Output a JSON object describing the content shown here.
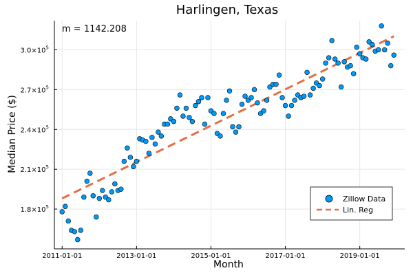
{
  "chart_data": {
    "type": "scatter",
    "title": "Harlingen, Texas",
    "xlabel": "Month",
    "ylabel": "Median Price ($)",
    "annotation": "m = 1142.208",
    "x_tick_labels": [
      "2011-01-01",
      "2013-01-01",
      "2015-01-01",
      "2017-01-01",
      "2019-01-01"
    ],
    "y_ticks": [
      {
        "value": 180000,
        "mantissa": "1.8",
        "exp": "5"
      },
      {
        "value": 210000,
        "mantissa": "2.1",
        "exp": "5"
      },
      {
        "value": 240000,
        "mantissa": "2.4",
        "exp": "5"
      },
      {
        "value": 270000,
        "mantissa": "2.7",
        "exp": "5"
      },
      {
        "value": 300000,
        "mantissa": "3.0",
        "exp": "5"
      }
    ],
    "xlim_months": [
      -2.5,
      110.5
    ],
    "ylim": [
      150000,
      322000
    ],
    "grid": true,
    "legend_position": "bottom-right",
    "series": [
      {
        "name": "Zillow Data",
        "kind": "scatter",
        "color": "#009AF9",
        "points": [
          [
            0,
            178000
          ],
          [
            1,
            182000
          ],
          [
            2,
            171000
          ],
          [
            3,
            164000
          ],
          [
            4,
            163000
          ],
          [
            5,
            157000
          ],
          [
            6,
            164000
          ],
          [
            7,
            189000
          ],
          [
            8,
            201000
          ],
          [
            9,
            207000
          ],
          [
            10,
            190000
          ],
          [
            11,
            174000
          ],
          [
            12,
            188000
          ],
          [
            13,
            194000
          ],
          [
            14,
            189000
          ],
          [
            15,
            187000
          ],
          [
            16,
            193000
          ],
          [
            17,
            199000
          ],
          [
            18,
            194000
          ],
          [
            19,
            195000
          ],
          [
            20,
            216000
          ],
          [
            21,
            226000
          ],
          [
            22,
            219000
          ],
          [
            23,
            212000
          ],
          [
            24,
            216000
          ],
          [
            25,
            233000
          ],
          [
            26,
            232000
          ],
          [
            27,
            231000
          ],
          [
            28,
            222000
          ],
          [
            29,
            234000
          ],
          [
            30,
            229000
          ],
          [
            31,
            238000
          ],
          [
            32,
            235000
          ],
          [
            33,
            244000
          ],
          [
            34,
            244000
          ],
          [
            35,
            248000
          ],
          [
            36,
            246000
          ],
          [
            37,
            256000
          ],
          [
            38,
            266000
          ],
          [
            39,
            250000
          ],
          [
            40,
            256000
          ],
          [
            41,
            249000
          ],
          [
            42,
            246000
          ],
          [
            43,
            258000
          ],
          [
            44,
            261000
          ],
          [
            45,
            264000
          ],
          [
            46,
            244000
          ],
          [
            47,
            264000
          ],
          [
            48,
            254000
          ],
          [
            49,
            252000
          ],
          [
            50,
            237000
          ],
          [
            51,
            235000
          ],
          [
            52,
            252000
          ],
          [
            53,
            262000
          ],
          [
            54,
            269000
          ],
          [
            55,
            242000
          ],
          [
            56,
            238000
          ],
          [
            57,
            242000
          ],
          [
            58,
            259000
          ],
          [
            59,
            265000
          ],
          [
            60,
            262000
          ],
          [
            61,
            264000
          ],
          [
            62,
            270000
          ],
          [
            63,
            260000
          ],
          [
            64,
            252000
          ],
          [
            65,
            254000
          ],
          [
            66,
            262000
          ],
          [
            67,
            272000
          ],
          [
            68,
            274000
          ],
          [
            69,
            274000
          ],
          [
            70,
            281000
          ],
          [
            71,
            264000
          ],
          [
            72,
            258000
          ],
          [
            73,
            250000
          ],
          [
            74,
            258000
          ],
          [
            75,
            262000
          ],
          [
            76,
            266000
          ],
          [
            77,
            264000
          ],
          [
            78,
            265000
          ],
          [
            79,
            283000
          ],
          [
            80,
            266000
          ],
          [
            81,
            271000
          ],
          [
            82,
            275000
          ],
          [
            83,
            273000
          ],
          [
            84,
            278000
          ],
          [
            85,
            290000
          ],
          [
            86,
            294000
          ],
          [
            87,
            307000
          ],
          [
            88,
            293000
          ],
          [
            89,
            290000
          ],
          [
            90,
            272000
          ],
          [
            91,
            291000
          ],
          [
            92,
            287000
          ],
          [
            93,
            288000
          ],
          [
            94,
            282000
          ],
          [
            95,
            302000
          ],
          [
            96,
            297000
          ],
          [
            97,
            294000
          ],
          [
            98,
            293000
          ],
          [
            99,
            306000
          ],
          [
            100,
            304000
          ],
          [
            101,
            299000
          ],
          [
            102,
            300000
          ],
          [
            103,
            318000
          ],
          [
            104,
            300000
          ],
          [
            105,
            305000
          ],
          [
            106,
            288000
          ],
          [
            107,
            296000
          ]
        ]
      },
      {
        "name": "Lin. Reg",
        "kind": "line",
        "color": "#E26F46",
        "slope": 1142.208,
        "points": [
          [
            0,
            188000
          ],
          [
            107,
            310200
          ]
        ]
      }
    ]
  }
}
